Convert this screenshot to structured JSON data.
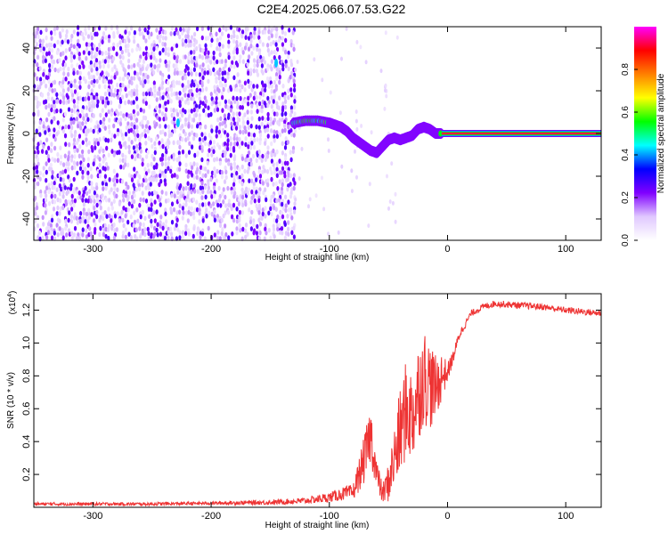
{
  "title": "C2E4.2025.066.07.53.G22",
  "colors": {
    "axis": "#000000",
    "snr_line": "#ee3333"
  },
  "chart_data": [
    {
      "type": "heatmap",
      "title": "C2E4.2025.066.07.53.G22",
      "xlabel": "Height of straight line (km)",
      "ylabel": "Frequency (Hz)",
      "xlim": [
        -350,
        130
      ],
      "ylim": [
        -50,
        50
      ],
      "xticks": [
        -300,
        -200,
        -100,
        0,
        100
      ],
      "yticks": [
        -40,
        -20,
        0,
        20,
        40
      ],
      "grid": false,
      "colorbar": {
        "label": "Normalized spectral amplitude",
        "range": [
          0,
          1
        ],
        "ticks": [
          "0.0",
          "0.2",
          "0.4",
          "0.6",
          "0.8"
        ],
        "colormap": [
          "#ffffff",
          "#e0c8ff",
          "#8000ff",
          "#0000ff",
          "#00ffff",
          "#00ff00",
          "#ffff00",
          "#ff8000",
          "#ff0000",
          "#ff00ff"
        ]
      },
      "regions": [
        {
          "name": "noise",
          "x": [
            -350,
            -130
          ],
          "y": [
            -50,
            50
          ],
          "amplitude": [
            0.02,
            0.15
          ]
        },
        {
          "name": "tone",
          "x": [
            -5,
            130
          ],
          "y": [
            0,
            0
          ],
          "amplitude": 0.9
        }
      ],
      "signal_track": {
        "x": [
          -130,
          -120,
          -110,
          -100,
          -95,
          -90,
          -85,
          -80,
          -75,
          -70,
          -65,
          -60,
          -55,
          -50,
          -45,
          -40,
          -35,
          -30,
          -25,
          -20,
          -15,
          -10,
          -5
        ],
        "freq": [
          5,
          6,
          6,
          5,
          4,
          3,
          1,
          -2,
          -4,
          -6,
          -8,
          -9,
          -6,
          -3,
          -2,
          -3,
          -2,
          -1,
          2,
          3,
          2,
          0,
          0
        ]
      },
      "artifacts": [
        {
          "x": -228,
          "y": 5
        },
        {
          "x": -145,
          "y": 33
        }
      ]
    },
    {
      "type": "line",
      "xlabel": "Height of straight line (km)",
      "ylabel": "SNR (10 * v/v)",
      "scale_label": "(x10^4)",
      "xlim": [
        -350,
        130
      ],
      "ylim": [
        0,
        1.3
      ],
      "xticks": [
        -300,
        -200,
        -100,
        0,
        100
      ],
      "yticks": [
        0.2,
        0.4,
        0.6,
        0.8,
        1.0,
        1.2
      ],
      "ytick_labels": [
        "0.2",
        "0.4",
        "0.6",
        "0.8",
        "1.0",
        "1.2"
      ],
      "grid": false,
      "series": [
        {
          "x": [
            -350,
            -300,
            -250,
            -200,
            -150,
            -120,
            -100,
            -90,
            -80,
            -70,
            -65,
            -60,
            -55,
            -50,
            -45,
            -40,
            -35,
            -30,
            -25,
            -20,
            -15,
            -10,
            -5,
            0,
            5,
            10,
            20,
            30,
            40,
            60,
            80,
            100,
            130
          ],
          "values": [
            0.02,
            0.02,
            0.02,
            0.025,
            0.03,
            0.04,
            0.06,
            0.08,
            0.09,
            0.3,
            0.45,
            0.2,
            0.08,
            0.15,
            0.3,
            0.45,
            0.6,
            0.55,
            0.7,
            0.8,
            0.75,
            0.72,
            0.8,
            0.82,
            0.92,
            1.05,
            1.18,
            1.22,
            1.24,
            1.23,
            1.22,
            1.2,
            1.18
          ],
          "noise": [
            0.01,
            0.01,
            0.01,
            0.01,
            0.015,
            0.02,
            0.03,
            0.04,
            0.05,
            0.15,
            0.18,
            0.1,
            0.06,
            0.12,
            0.2,
            0.28,
            0.3,
            0.3,
            0.3,
            0.3,
            0.28,
            0.2,
            0.15,
            0.06,
            0.04,
            0.03,
            0.02,
            0.02,
            0.02,
            0.02,
            0.02,
            0.02,
            0.02
          ]
        }
      ]
    }
  ]
}
